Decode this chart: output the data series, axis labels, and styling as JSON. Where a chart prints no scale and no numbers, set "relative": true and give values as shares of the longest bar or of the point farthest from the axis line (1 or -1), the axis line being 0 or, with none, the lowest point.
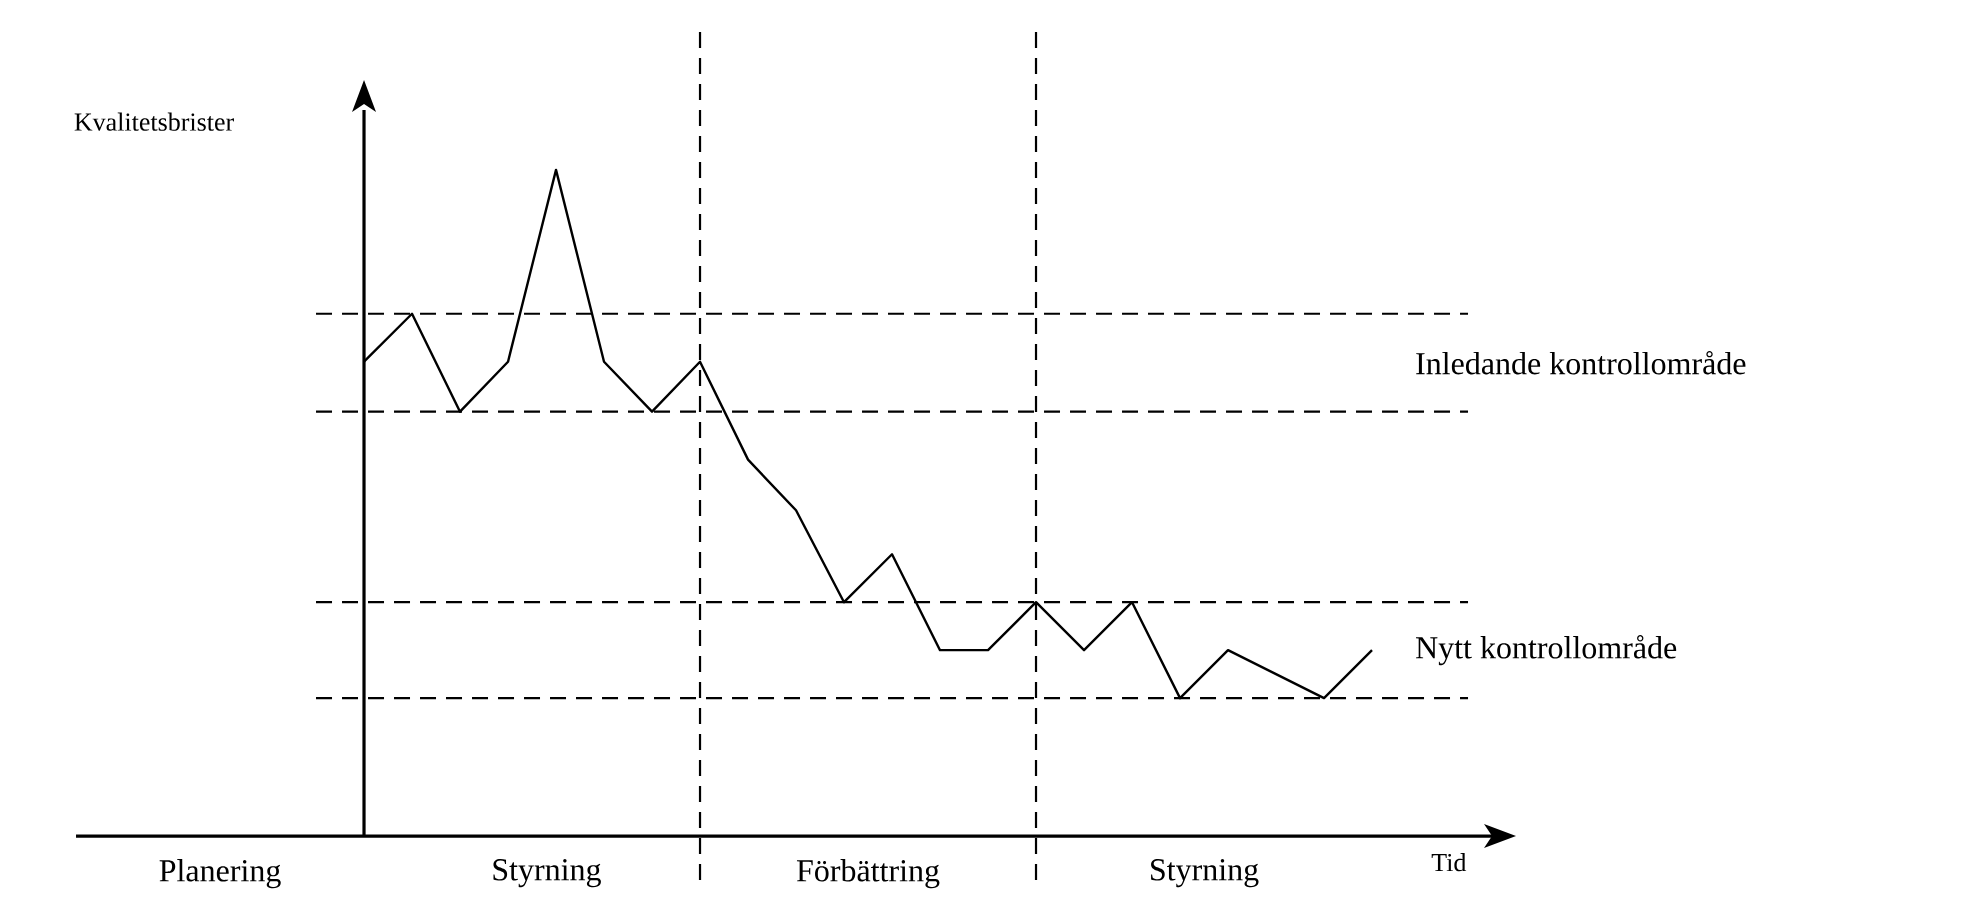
{
  "chart_data": {
    "type": "line",
    "relative": true,
    "xlabel": "Tid",
    "ylabel": "Kvalitetsbrister",
    "categories": [
      null,
      null,
      null,
      null,
      null,
      null,
      null,
      null,
      null,
      null,
      null,
      null,
      null,
      null,
      null,
      null,
      null,
      null,
      null,
      null,
      null,
      null
    ],
    "series": [
      {
        "color": "#000000",
        "values": [
          0.712,
          0.784,
          0.637,
          0.712,
          1,
          0.712,
          0.637,
          0.712,
          0.565,
          0.489,
          0.351,
          0.423,
          0.279,
          0.279,
          0.351,
          0.279,
          0.351,
          0.207,
          0.279,
          0.243,
          0.207,
          0.279
        ]
      }
    ],
    "marker": "none",
    "line_style": "solid",
    "ref_lines": [
      {
        "axis": "y",
        "value": 0.784,
        "label": null,
        "line_style": "dashed",
        "color": "#000000"
      },
      {
        "axis": "y",
        "value": 0.637,
        "label": null,
        "line_style": "dashed",
        "color": "#000000"
      },
      {
        "axis": "y",
        "value": 0.351,
        "label": null,
        "line_style": "dashed",
        "color": "#000000"
      },
      {
        "axis": "y",
        "value": 0.207,
        "label": null,
        "line_style": "dashed",
        "color": "#000000"
      }
    ],
    "annotations": [
      "Inledande kontrollområde",
      "Nytt kontrollområde",
      "Planering",
      "Styrning",
      "Förbättring",
      "Styrning"
    ]
  }
}
